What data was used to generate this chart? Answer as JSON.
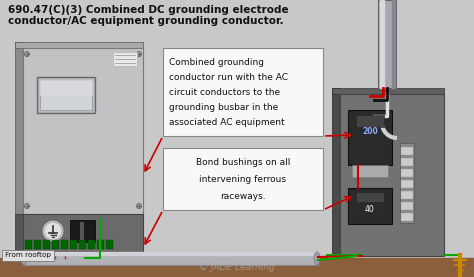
{
  "title_line1": "690.47(C)(3) Combined DC grounding electrode",
  "title_line2": "conductor/AC equipment grounding conductor.",
  "callout1_lines": [
    "Combined grounding",
    "conductor run with the AC",
    "circuit conductors to the",
    "grounding busbar in the",
    "associated AC equipment"
  ],
  "callout2_lines": [
    "Bond bushings on all",
    "intervening ferrous",
    "raceways."
  ],
  "from_rooftop": "From rooftop",
  "copyright": "© JADE Learning",
  "bg_color": "#c8c8c8",
  "title_color": "#111111",
  "white_box": "#f8f8f8",
  "red_wire": "#cc0000",
  "green_wire": "#00aa00",
  "arrow_color": "#cc0000",
  "ground_soil": "#8B5E3C",
  "ground_rod_color": "#cc8800",
  "left_box_face": "#c0c2c4",
  "left_box_side": "#8a8a8a",
  "left_bottom_dark": "#6a6a6a",
  "right_box_face": "#727272",
  "right_box_side": "#4a4a4a",
  "conduit_color": "#b0b2b8",
  "conduit_top": "#d0d2d8",
  "pipe_color": "#a8a8b0",
  "pipe_hi": "#d8d8e0",
  "breaker_color": "#2a2a2a",
  "terminal_color": "#888888"
}
